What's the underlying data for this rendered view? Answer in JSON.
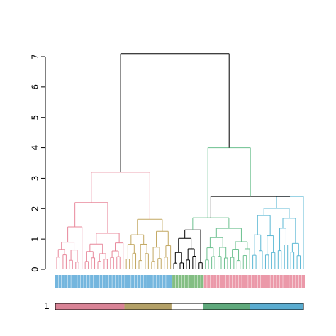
{
  "chart_data": {
    "type": "dendrogram",
    "title": "",
    "xlabel": "",
    "ylabel": "",
    "ylim": [
      0,
      7
    ],
    "yticks": [
      "0",
      "1",
      "2",
      "3",
      "4",
      "5",
      "6",
      "7"
    ],
    "grid": false,
    "branch_color": "#000000",
    "clusters": [
      {
        "leaf_count": 22,
        "color": "#E8879A",
        "leaf_label_color": "#5CA9D8"
      },
      {
        "leaf_count": 15,
        "color": "#C2A760",
        "leaf_label_color": "#5CA9D8"
      },
      {
        "leaf_count": 10,
        "color": "#000000",
        "leaf_label_color": "#6DB36D"
      },
      {
        "leaf_count": 15,
        "color": "#6CC08F",
        "leaf_label_color": "#E8879A"
      },
      {
        "leaf_count": 17,
        "color": "#5CB8D4",
        "leaf_label_color": "#E8879A"
      }
    ],
    "merges": {
      "pink_split_height": 1.4,
      "pink_height": 2.2,
      "pink_gold_height": 3.2,
      "gold_height": 1.65,
      "black_green_height": 1.7,
      "black_green_teal_height": 2.4,
      "right_group_height": 4.0,
      "root_height": 7.1
    },
    "bottom_bar": {
      "label": "1",
      "segments": [
        {
          "width": 22,
          "color": "#D98396"
        },
        {
          "width": 15,
          "color": "#B3A067"
        },
        {
          "width": 10,
          "color": "#FFFFFF"
        },
        {
          "width": 15,
          "color": "#5FA97C"
        },
        {
          "width": 17,
          "color": "#5AACD0"
        }
      ]
    }
  }
}
